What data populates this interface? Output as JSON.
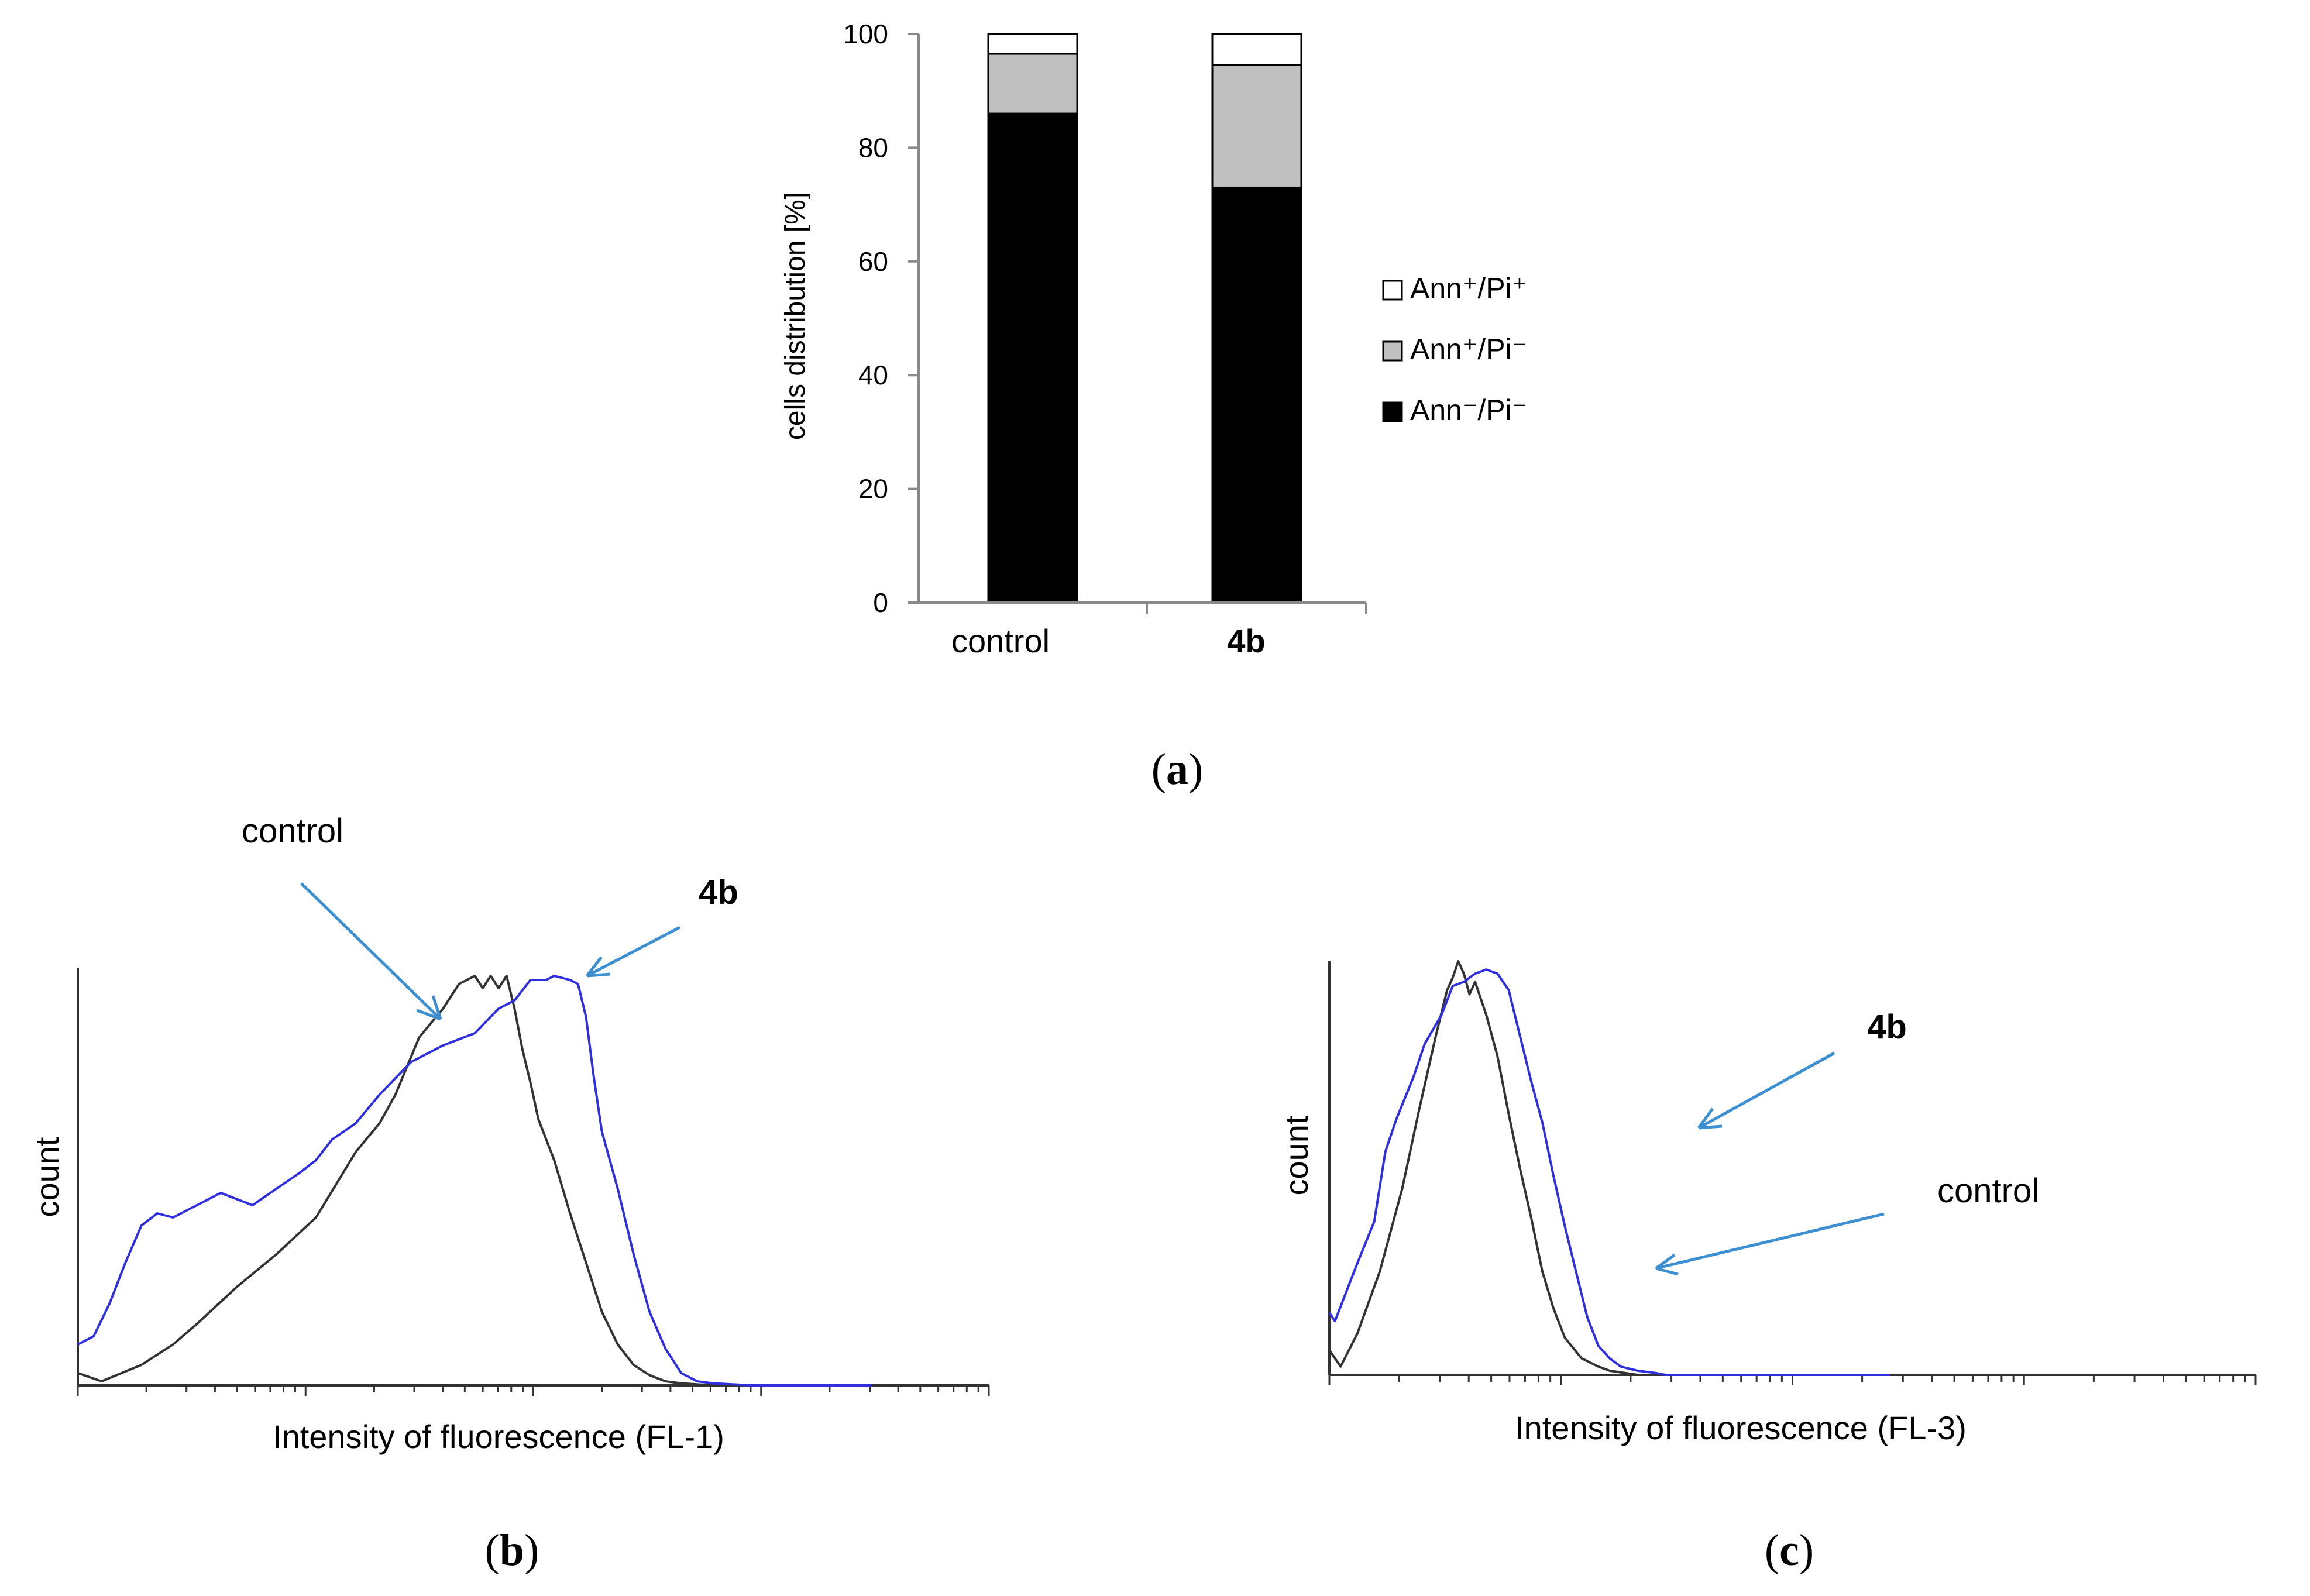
{
  "chart_data": [
    {
      "id": "a",
      "type": "bar",
      "stacked": true,
      "caption": "a",
      "categories": [
        "control",
        "4b"
      ],
      "categories_bold": [
        false,
        true
      ],
      "series": [
        {
          "name": "Ann⁻/Pi⁻",
          "color": "#000000",
          "values": [
            86,
            73
          ]
        },
        {
          "name": "Ann⁺/Pi⁻",
          "color": "#c0c0c0",
          "values": [
            10.5,
            21.5
          ]
        },
        {
          "name": "Ann⁺/Pi⁺",
          "color": "#ffffff",
          "values": [
            3.5,
            5.5
          ]
        }
      ],
      "ylabel": "cells distribution [%]",
      "ylim": [
        0,
        100
      ],
      "yticks": [
        "0",
        "20",
        "40",
        "60",
        "80",
        "100"
      ],
      "legend_position": "right",
      "legend_order": [
        "Ann⁺/Pi⁺",
        "Ann⁺/Pi⁻",
        "Ann⁻/Pi⁻"
      ]
    },
    {
      "id": "b",
      "type": "line",
      "caption": "b",
      "xlabel": "Intensity of fluorescence (FL-1)",
      "ylabel": "count",
      "xscale": "log",
      "xlim": [
        0,
        1
      ],
      "ylim": [
        0,
        1
      ],
      "annotations": [
        {
          "text": "control",
          "bold": false,
          "points_to": "control"
        },
        {
          "text": "4b",
          "bold": true,
          "points_to": "4b"
        }
      ],
      "series": [
        {
          "name": "control",
          "color": "#333333",
          "x": [
            0,
            0.03,
            0.08,
            0.12,
            0.15,
            0.2,
            0.25,
            0.3,
            0.35,
            0.38,
            0.4,
            0.43,
            0.46,
            0.48,
            0.5,
            0.51,
            0.52,
            0.53,
            0.54,
            0.55,
            0.56,
            0.57,
            0.58,
            0.6,
            0.62,
            0.64,
            0.66,
            0.68,
            0.7,
            0.72,
            0.74,
            0.76,
            0.8,
            0.85,
            0.9,
            1.0
          ],
          "y": [
            0.03,
            0.01,
            0.05,
            0.1,
            0.15,
            0.24,
            0.32,
            0.41,
            0.57,
            0.64,
            0.71,
            0.85,
            0.92,
            0.98,
            1.0,
            0.97,
            1.0,
            0.97,
            1.0,
            0.92,
            0.82,
            0.74,
            0.65,
            0.55,
            0.42,
            0.3,
            0.18,
            0.1,
            0.05,
            0.025,
            0.01,
            0.005,
            0,
            0,
            0,
            0
          ]
        },
        {
          "name": "4b",
          "color": "#2f2fe0",
          "x": [
            0,
            0.02,
            0.04,
            0.06,
            0.08,
            0.1,
            0.12,
            0.15,
            0.18,
            0.22,
            0.25,
            0.28,
            0.3,
            0.32,
            0.35,
            0.38,
            0.42,
            0.46,
            0.5,
            0.53,
            0.55,
            0.57,
            0.59,
            0.6,
            0.62,
            0.63,
            0.64,
            0.65,
            0.66,
            0.68,
            0.7,
            0.72,
            0.74,
            0.76,
            0.78,
            0.8,
            0.85,
            0.9,
            1.0
          ],
          "y": [
            0.1,
            0.12,
            0.2,
            0.3,
            0.39,
            0.42,
            0.41,
            0.44,
            0.47,
            0.44,
            0.48,
            0.52,
            0.55,
            0.6,
            0.64,
            0.71,
            0.79,
            0.83,
            0.86,
            0.92,
            0.94,
            0.99,
            0.99,
            1.0,
            0.99,
            0.98,
            0.9,
            0.75,
            0.62,
            0.48,
            0.32,
            0.18,
            0.09,
            0.03,
            0.01,
            0.005,
            0,
            0,
            0
          ]
        }
      ]
    },
    {
      "id": "c",
      "type": "line",
      "caption": "c",
      "xlabel": "Intensity of fluorescence (FL-3)",
      "ylabel": "count",
      "xscale": "log",
      "xlim": [
        0,
        1
      ],
      "ylim": [
        0,
        1
      ],
      "annotations": [
        {
          "text": "4b",
          "bold": true,
          "points_to": "4b"
        },
        {
          "text": "control",
          "bold": false,
          "points_to": "control"
        }
      ],
      "series": [
        {
          "name": "control",
          "color": "#333333",
          "x": [
            0,
            0.02,
            0.05,
            0.09,
            0.13,
            0.16,
            0.19,
            0.21,
            0.22,
            0.23,
            0.24,
            0.25,
            0.26,
            0.28,
            0.3,
            0.32,
            0.34,
            0.36,
            0.38,
            0.4,
            0.42,
            0.45,
            0.48,
            0.5,
            0.55,
            0.6,
            0.7,
            1.0
          ],
          "y": [
            0.06,
            0.02,
            0.1,
            0.25,
            0.45,
            0.64,
            0.82,
            0.93,
            0.96,
            1.0,
            0.97,
            0.92,
            0.95,
            0.87,
            0.77,
            0.63,
            0.5,
            0.38,
            0.25,
            0.16,
            0.09,
            0.04,
            0.02,
            0.01,
            0,
            0,
            0,
            0
          ]
        },
        {
          "name": "4b",
          "color": "#2f2fe0",
          "x": [
            0,
            0.01,
            0.03,
            0.05,
            0.08,
            0.1,
            0.12,
            0.15,
            0.17,
            0.2,
            0.22,
            0.24,
            0.26,
            0.28,
            0.3,
            0.32,
            0.34,
            0.36,
            0.38,
            0.4,
            0.42,
            0.44,
            0.46,
            0.48,
            0.5,
            0.52,
            0.55,
            0.58,
            0.6,
            0.65,
            0.7,
            1.0
          ],
          "y": [
            0.15,
            0.13,
            0.2,
            0.27,
            0.37,
            0.54,
            0.62,
            0.72,
            0.8,
            0.87,
            0.94,
            0.95,
            0.97,
            0.98,
            0.97,
            0.93,
            0.82,
            0.71,
            0.61,
            0.48,
            0.36,
            0.25,
            0.14,
            0.07,
            0.04,
            0.02,
            0.01,
            0.005,
            0,
            0,
            0,
            0
          ]
        }
      ]
    }
  ]
}
